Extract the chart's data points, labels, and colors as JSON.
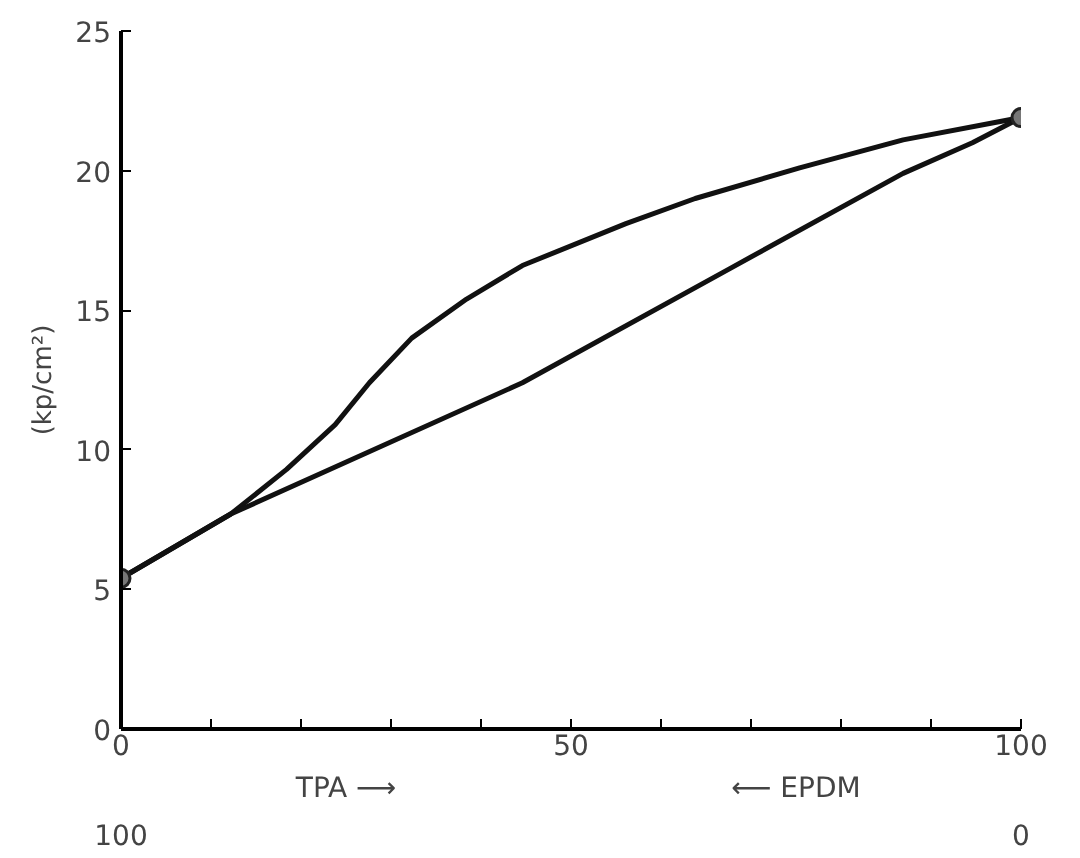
{
  "chart_data": {
    "type": "line",
    "ylabel": "(kp/cm²)",
    "xlim": [
      0,
      100
    ],
    "ylim": [
      0,
      25
    ],
    "xticks": [
      0,
      {
        "value": 10,
        "label": null
      },
      {
        "value": 20,
        "label": null
      },
      {
        "value": 30,
        "label": null
      },
      {
        "value": 40,
        "label": null
      },
      50,
      {
        "value": 60,
        "label": null
      },
      {
        "value": 70,
        "label": null
      },
      {
        "value": 80,
        "label": null
      },
      {
        "value": 90,
        "label": null
      },
      100
    ],
    "x2lim": [
      100,
      0
    ],
    "x2ticks": [
      100,
      0
    ],
    "yticks": [
      0,
      5,
      10,
      15,
      20,
      25
    ],
    "grid": false,
    "line_style": "solid",
    "annotations": [
      "TPA ⟶",
      "⟵ EPDM"
    ],
    "series": [
      {
        "color": "#111111",
        "marker": "none",
        "x": [
          0,
          12.2,
          18.4,
          23.8,
          27.6,
          32.3,
          38.4,
          44.6,
          56.1,
          63.8,
          75.4,
          86.9,
          100
        ],
        "values": [
          5.4,
          7.7,
          9.3,
          10.9,
          12.4,
          14.0,
          15.4,
          16.6,
          18.1,
          19.0,
          20.1,
          21.1,
          21.9
        ]
      },
      {
        "color": "#111111",
        "marker": "none",
        "x": [
          0,
          12.2,
          44.6,
          67.7,
          86.9,
          94.6,
          100
        ],
        "values": [
          5.4,
          7.7,
          12.4,
          16.5,
          19.9,
          21.0,
          21.9
        ]
      },
      {
        "type": "scatter",
        "color": "#777777",
        "marker": "circle",
        "x": [
          0,
          100
        ],
        "values": [
          5.4,
          21.9
        ]
      }
    ]
  }
}
